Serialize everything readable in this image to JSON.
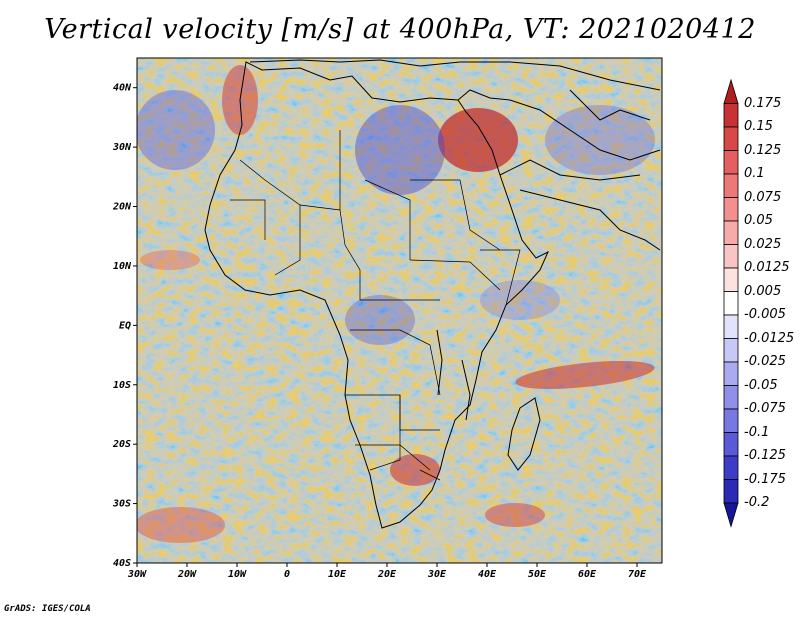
{
  "title": "Vertical velocity [m/s] at 400hPa, VT: 2021020412",
  "map": {
    "lon_labels": [
      "30W",
      "20W",
      "10W",
      "0",
      "10E",
      "20E",
      "30E",
      "40E",
      "50E",
      "60E",
      "70E"
    ],
    "lat_labels": [
      "40N",
      "30N",
      "20N",
      "10N",
      "EQ",
      "10S",
      "20S",
      "30S",
      "40S"
    ],
    "lon_range": [
      -30,
      75
    ],
    "lat_range": [
      -40,
      45
    ]
  },
  "colorbar": {
    "labels": [
      "0.175",
      "0.15",
      "0.125",
      "0.1",
      "0.075",
      "0.05",
      "0.025",
      "0.0125",
      "0.005",
      "-0.005",
      "-0.0125",
      "-0.025",
      "-0.05",
      "-0.075",
      "-0.1",
      "-0.125",
      "-0.175",
      "-0.2"
    ],
    "colors": [
      "#b02020",
      "#c83232",
      "#d84848",
      "#e46060",
      "#ec7878",
      "#f29090",
      "#f6aaaa",
      "#fac4c4",
      "#fde2e2",
      "#ffffff",
      "#e2e2fb",
      "#c8c8f6",
      "#aaaaf0",
      "#9090ea",
      "#7878e2",
      "#5a5ad8",
      "#3c3cc8",
      "#2a2ab4",
      "#16169a"
    ]
  },
  "credit": "GrADS: IGES/COLA"
}
